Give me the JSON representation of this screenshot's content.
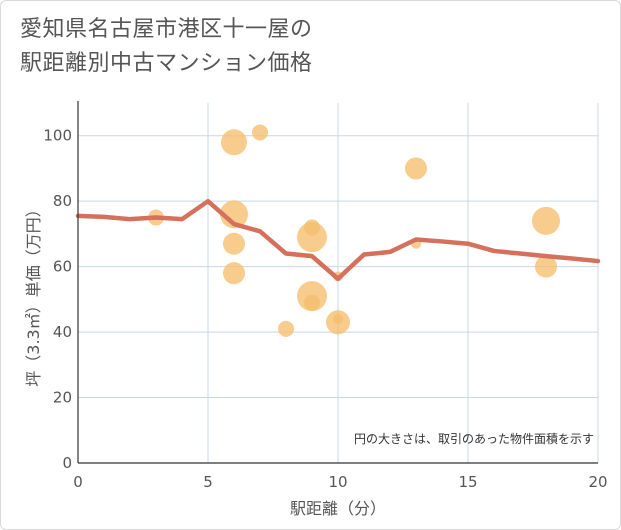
{
  "chart_data": {
    "type": "scatter",
    "title_line1": "愛知県名古屋市港区十一屋の",
    "title_line2": "駅距離別中古マンション価格",
    "xlabel": "駅距離（分）",
    "ylabel": "坪（3.3㎡）単価（万円）",
    "xlim": [
      0,
      20
    ],
    "ylim": [
      0,
      110
    ],
    "xticks": [
      "0",
      "5",
      "10",
      "15",
      "20"
    ],
    "yticks": [
      "0",
      "20",
      "40",
      "60",
      "80",
      "100"
    ],
    "xtick_values": [
      0,
      5,
      10,
      15,
      20
    ],
    "ytick_values": [
      0,
      20,
      40,
      60,
      80,
      100
    ],
    "grid": true,
    "note": "円の大きさは、取引のあった物件面積を示す",
    "colors": {
      "bubble": "#f5be6b",
      "line": "#d4705b",
      "grid": "#c8d7e6",
      "axis": "#333333"
    },
    "scatter": [
      {
        "x": 3,
        "y": 75,
        "size": 8
      },
      {
        "x": 6,
        "y": 98,
        "size": 13
      },
      {
        "x": 6,
        "y": 76,
        "size": 14
      },
      {
        "x": 6,
        "y": 67,
        "size": 11
      },
      {
        "x": 6,
        "y": 58,
        "size": 11
      },
      {
        "x": 7,
        "y": 101,
        "size": 8
      },
      {
        "x": 8,
        "y": 41,
        "size": 8
      },
      {
        "x": 9,
        "y": 72,
        "size": 8
      },
      {
        "x": 9,
        "y": 69,
        "size": 15
      },
      {
        "x": 9,
        "y": 51,
        "size": 15
      },
      {
        "x": 9,
        "y": 49,
        "size": 8
      },
      {
        "x": 10,
        "y": 43,
        "size": 12
      },
      {
        "x": 10,
        "y": 44,
        "size": 5
      },
      {
        "x": 10,
        "y": 57,
        "size": 5
      },
      {
        "x": 13,
        "y": 90,
        "size": 11
      },
      {
        "x": 13,
        "y": 67,
        "size": 5
      },
      {
        "x": 18,
        "y": 74,
        "size": 14
      },
      {
        "x": 18,
        "y": 60,
        "size": 11
      }
    ],
    "line": {
      "x": [
        0,
        1,
        2,
        3,
        4,
        5,
        6,
        7,
        8,
        9,
        10,
        11,
        12,
        13,
        14,
        15,
        16,
        17,
        18,
        19,
        20
      ],
      "y": [
        75.5,
        75.2,
        74.5,
        75.0,
        74.5,
        80.0,
        73.0,
        70.8,
        64.0,
        63.2,
        56.3,
        63.7,
        64.5,
        68.3,
        67.7,
        67.0,
        64.8,
        64.0,
        63.2,
        62.5,
        61.7
      ]
    }
  }
}
